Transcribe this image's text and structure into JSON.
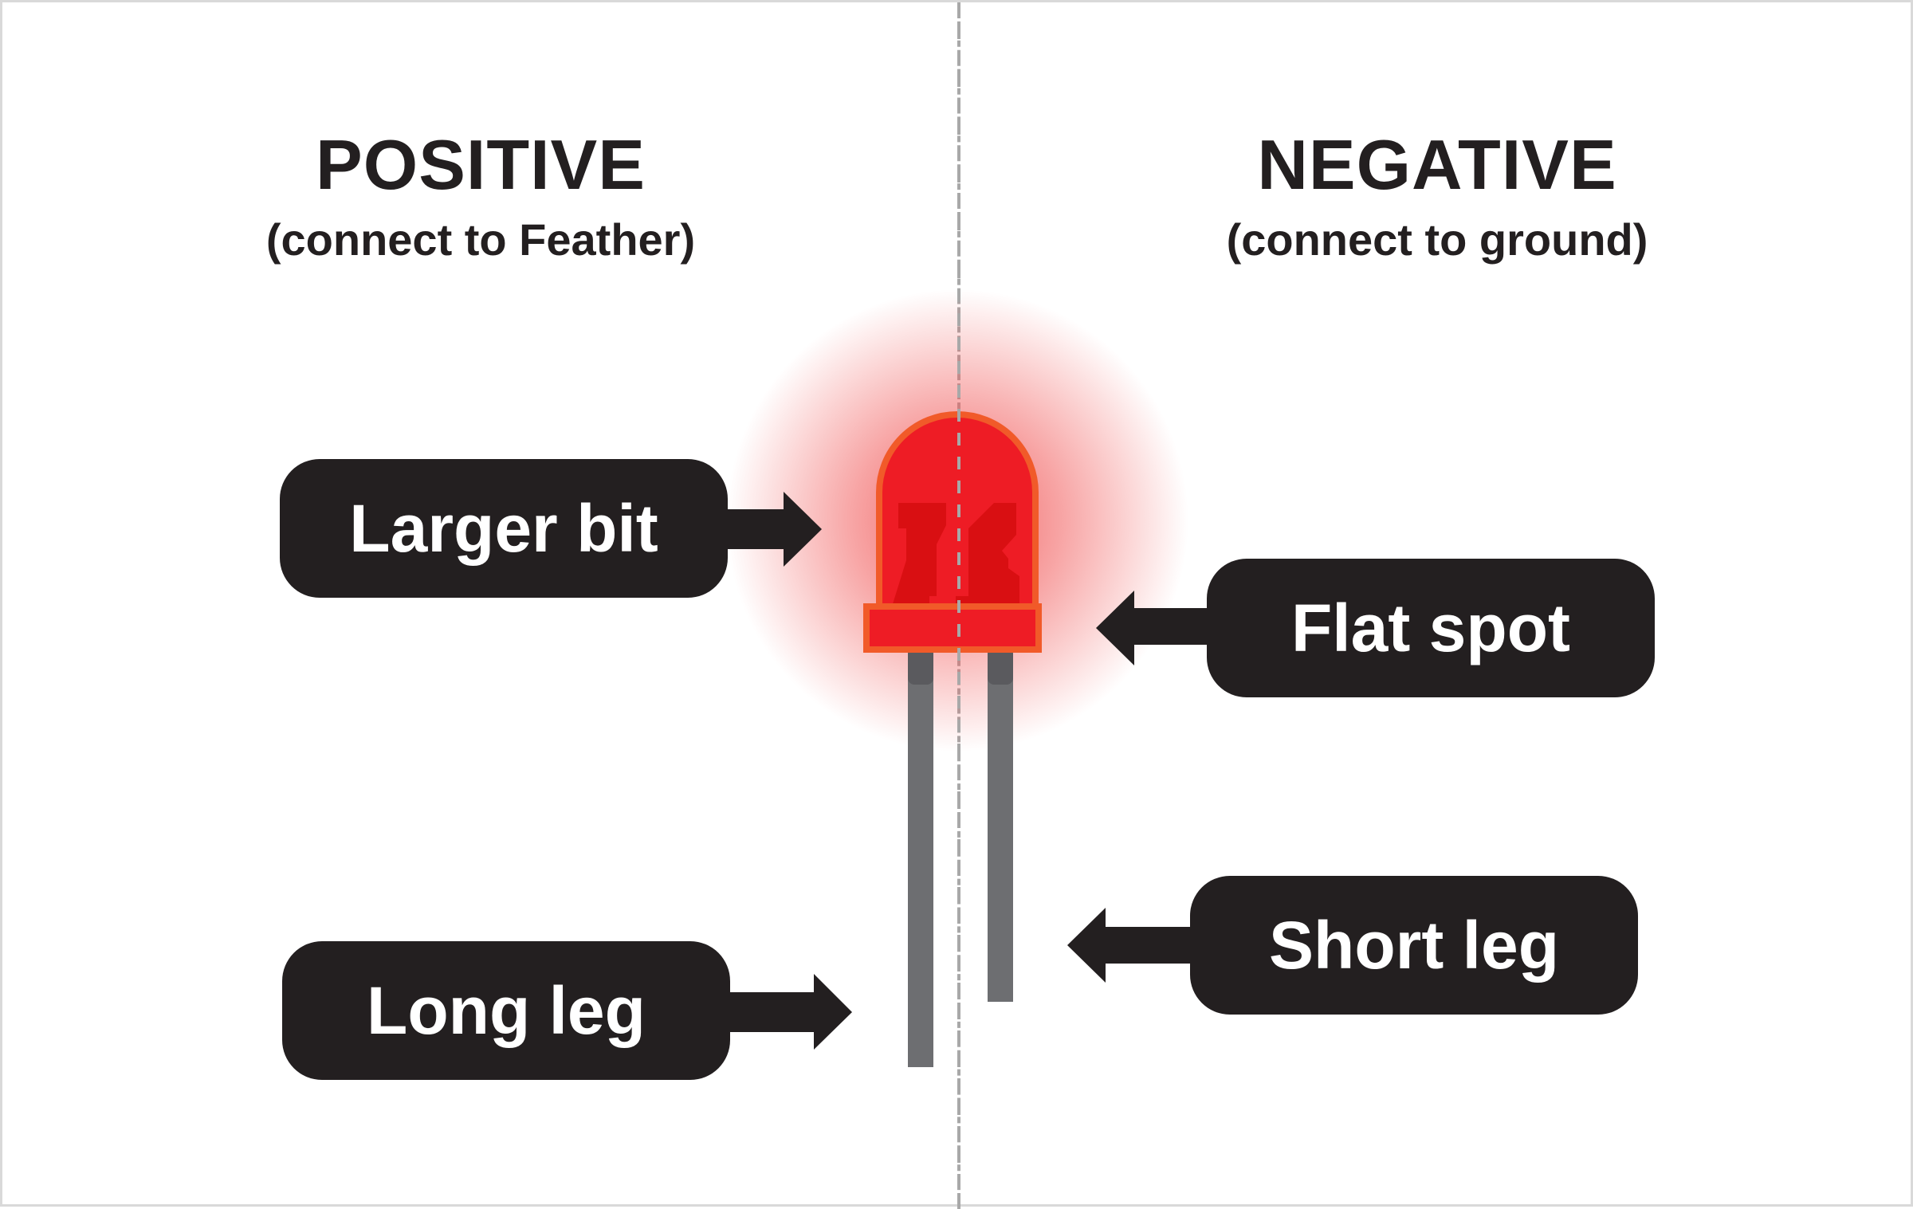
{
  "positive": {
    "title": "POSITIVE",
    "subtitle": "(connect to Feather)"
  },
  "negative": {
    "title": "NEGATIVE",
    "subtitle": "(connect to ground)"
  },
  "callouts": {
    "larger_bit": "Larger bit",
    "long_leg": "Long leg",
    "flat_spot": "Flat spot",
    "short_leg": "Short leg"
  },
  "colors": {
    "text": "#231f20",
    "callout_bg": "#231f20",
    "led_red": "#ee1c25",
    "led_dark_red": "#d90f12",
    "led_outline": "#f15a29",
    "led_glow": "#f15a5a",
    "leg_gray": "#6d6e71",
    "divider": "#a8a8a8"
  },
  "icons": {
    "led": "red-led-icon",
    "arrow_right": "arrow-right-icon",
    "arrow_left": "arrow-left-icon"
  }
}
